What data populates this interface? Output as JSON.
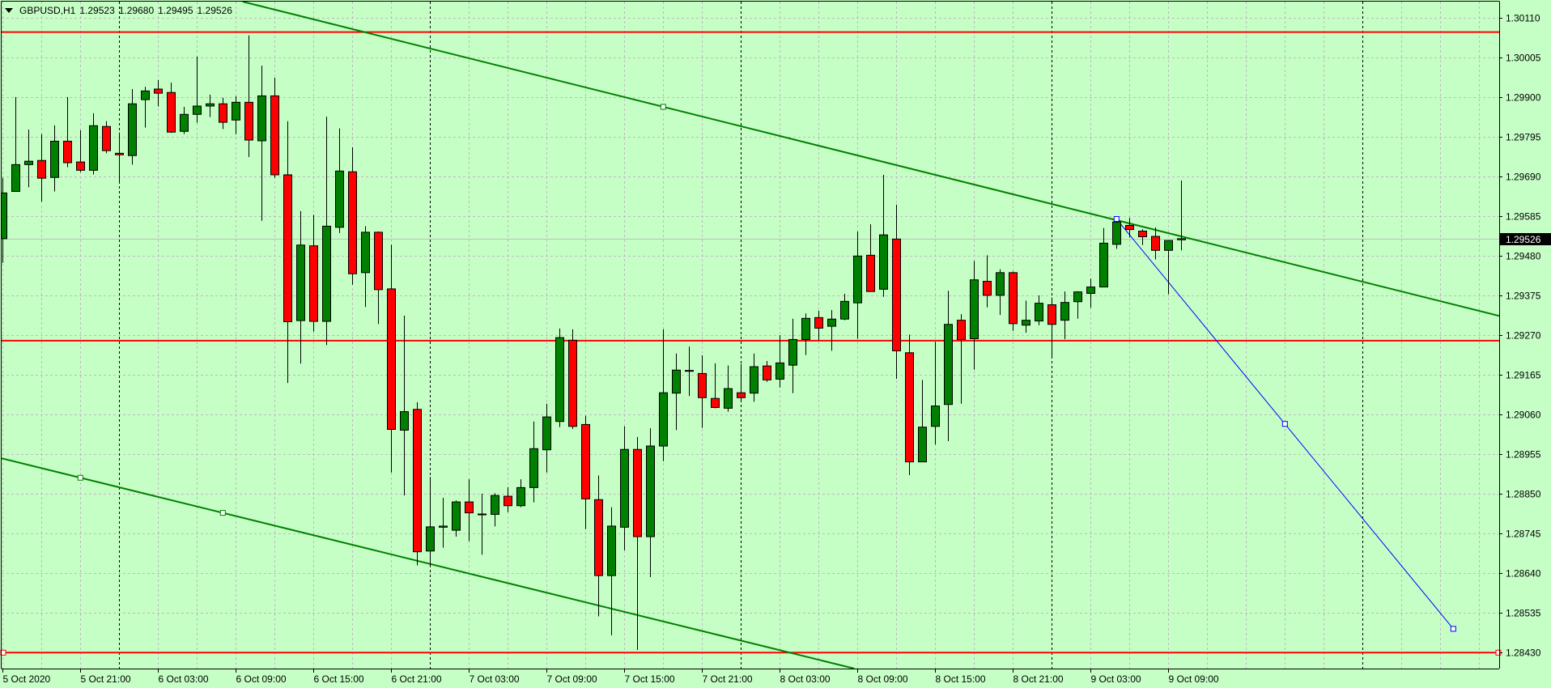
{
  "header": {
    "symbol_timeframe": "GBPUSD,H1",
    "open": "1.29523",
    "high": "1.29680",
    "low": "1.29495",
    "close": "1.29526",
    "menu_icon": "triangle-down-icon"
  },
  "colors": {
    "background": "#c6ffc6",
    "bull": "#008000",
    "bear": "#ff0000",
    "doji": "#000000",
    "outline": "#000000",
    "grid": "#c0b8c0",
    "separator": "#000000",
    "bid_line": "#c0c0c0"
  },
  "chart_data": {
    "type": "candlestick",
    "symbol": "GBPUSD",
    "timeframe": "H1",
    "grid": true,
    "ylim": [
      1.28388,
      1.30158
    ],
    "y_ticks": [
      "1.30110",
      "1.30005",
      "1.29900",
      "1.29795",
      "1.29690",
      "1.29585",
      "1.29480",
      "1.29375",
      "1.29270",
      "1.29165",
      "1.29060",
      "1.28955",
      "1.28850",
      "1.28745",
      "1.28640",
      "1.28535",
      "1.28430"
    ],
    "x_ticks": [
      {
        "time": "2020-10-05 15:00",
        "label": "5 Oct 2020"
      },
      {
        "time": "2020-10-05 21:00",
        "label": "5 Oct 21:00"
      },
      {
        "time": "2020-10-06 03:00",
        "label": "6 Oct 03:00"
      },
      {
        "time": "2020-10-06 09:00",
        "label": "6 Oct 09:00"
      },
      {
        "time": "2020-10-06 15:00",
        "label": "6 Oct 15:00"
      },
      {
        "time": "2020-10-06 21:00",
        "label": "6 Oct 21:00"
      },
      {
        "time": "2020-10-07 03:00",
        "label": "7 Oct 03:00"
      },
      {
        "time": "2020-10-07 09:00",
        "label": "7 Oct 09:00"
      },
      {
        "time": "2020-10-07 15:00",
        "label": "7 Oct 15:00"
      },
      {
        "time": "2020-10-07 21:00",
        "label": "7 Oct 21:00"
      },
      {
        "time": "2020-10-08 03:00",
        "label": "8 Oct 03:00"
      },
      {
        "time": "2020-10-08 09:00",
        "label": "8 Oct 09:00"
      },
      {
        "time": "2020-10-08 15:00",
        "label": "8 Oct 15:00"
      },
      {
        "time": "2020-10-08 21:00",
        "label": "8 Oct 21:00"
      },
      {
        "time": "2020-10-09 03:00",
        "label": "9 Oct 03:00"
      },
      {
        "time": "2020-10-09 09:00",
        "label": "9 Oct 09:00"
      }
    ],
    "bid": {
      "price": 1.29526,
      "label": "1.29526"
    },
    "ohlc_columns": [
      "time",
      "open",
      "high",
      "low",
      "close"
    ],
    "ohlc": [
      [
        "2020-10-05 15:00",
        1.29526,
        1.29687,
        1.29462,
        1.29647
      ],
      [
        "2020-10-05 16:00",
        1.29651,
        1.29901,
        1.29651,
        1.29722
      ],
      [
        "2020-10-05 17:00",
        1.29722,
        1.29815,
        1.29662,
        1.29731
      ],
      [
        "2020-10-05 18:00",
        1.29733,
        1.29803,
        1.29624,
        1.29686
      ],
      [
        "2020-10-05 19:00",
        1.29688,
        1.29826,
        1.29651,
        1.29784
      ],
      [
        "2020-10-05 20:00",
        1.29784,
        1.29901,
        1.29715,
        1.29727
      ],
      [
        "2020-10-05 21:00",
        1.29729,
        1.29813,
        1.29702,
        1.29707
      ],
      [
        "2020-10-05 22:00",
        1.29707,
        1.29858,
        1.29696,
        1.29825
      ],
      [
        "2020-10-05 23:00",
        1.29823,
        1.29837,
        1.29752,
        1.29759
      ],
      [
        "2020-10-06 00:00",
        1.29752,
        1.29807,
        1.29672,
        1.29748
      ],
      [
        "2020-10-06 01:00",
        1.29746,
        1.29922,
        1.29722,
        1.29883
      ],
      [
        "2020-10-06 02:00",
        1.29894,
        1.29928,
        1.2982,
        1.29917
      ],
      [
        "2020-10-06 03:00",
        1.29922,
        1.29946,
        1.29876,
        1.29911
      ],
      [
        "2020-10-06 04:00",
        1.29913,
        1.29939,
        1.29806,
        1.29808
      ],
      [
        "2020-10-06 05:00",
        1.2981,
        1.29875,
        1.29803,
        1.29855
      ],
      [
        "2020-10-06 06:00",
        1.29855,
        1.30008,
        1.29833,
        1.29877
      ],
      [
        "2020-10-06 07:00",
        1.29877,
        1.29907,
        1.29848,
        1.29883
      ],
      [
        "2020-10-06 08:00",
        1.29883,
        1.29899,
        1.29816,
        1.29834
      ],
      [
        "2020-10-06 09:00",
        1.2984,
        1.29903,
        1.29803,
        1.29887
      ],
      [
        "2020-10-06 10:00",
        1.29887,
        1.30064,
        1.29742,
        1.29787
      ],
      [
        "2020-10-06 11:00",
        1.29785,
        1.29984,
        1.29573,
        1.29904
      ],
      [
        "2020-10-06 12:00",
        1.29904,
        1.29952,
        1.29687,
        1.29695
      ],
      [
        "2020-10-06 13:00",
        1.29695,
        1.29837,
        1.29144,
        1.29306
      ],
      [
        "2020-10-06 14:00",
        1.29309,
        1.29599,
        1.29195,
        1.29509
      ],
      [
        "2020-10-06 15:00",
        1.29507,
        1.29589,
        1.2928,
        1.29307
      ],
      [
        "2020-10-06 16:00",
        1.29307,
        1.29849,
        1.29244,
        1.29559
      ],
      [
        "2020-10-06 17:00",
        1.29556,
        1.29818,
        1.29541,
        1.29705
      ],
      [
        "2020-10-06 18:00",
        1.29703,
        1.29768,
        1.29404,
        1.29433
      ],
      [
        "2020-10-06 19:00",
        1.29436,
        1.29559,
        1.29345,
        1.29543
      ],
      [
        "2020-10-06 20:00",
        1.29543,
        1.29545,
        1.293,
        1.29391
      ],
      [
        "2020-10-06 21:00",
        1.29393,
        1.2951,
        1.28907,
        1.29021
      ],
      [
        "2020-10-06 22:00",
        1.29019,
        1.29322,
        1.28846,
        1.29068
      ],
      [
        "2020-10-06 23:00",
        1.29074,
        1.29093,
        1.28661,
        1.28697
      ],
      [
        "2020-10-07 00:00",
        1.28699,
        1.28895,
        1.28662,
        1.28763
      ],
      [
        "2020-10-07 01:00",
        1.28762,
        1.2884,
        1.28708,
        1.28765
      ],
      [
        "2020-10-07 02:00",
        1.28754,
        1.28833,
        1.28737,
        1.28829
      ],
      [
        "2020-10-07 03:00",
        1.28829,
        1.28889,
        1.28725,
        1.288
      ],
      [
        "2020-10-07 04:00",
        1.28797,
        1.28851,
        1.28689,
        1.28797
      ],
      [
        "2020-10-07 05:00",
        1.28796,
        1.28852,
        1.28764,
        1.28846
      ],
      [
        "2020-10-07 06:00",
        1.28844,
        1.28868,
        1.28802,
        1.28819
      ],
      [
        "2020-10-07 07:00",
        1.28819,
        1.28889,
        1.28815,
        1.28867
      ],
      [
        "2020-10-07 08:00",
        1.28867,
        1.29042,
        1.28828,
        1.2897
      ],
      [
        "2020-10-07 09:00",
        1.28967,
        1.29089,
        1.28907,
        1.29054
      ],
      [
        "2020-10-07 10:00",
        1.29042,
        1.29288,
        1.29027,
        1.29264
      ],
      [
        "2020-10-07 11:00",
        1.29257,
        1.29286,
        1.29022,
        1.29029
      ],
      [
        "2020-10-07 12:00",
        1.29034,
        1.29057,
        1.28757,
        1.28837
      ],
      [
        "2020-10-07 13:00",
        1.28835,
        1.28899,
        1.28526,
        1.28634
      ],
      [
        "2020-10-07 14:00",
        1.28634,
        1.28815,
        1.28476,
        1.28765
      ],
      [
        "2020-10-07 15:00",
        1.28762,
        1.29029,
        1.28701,
        1.28968
      ],
      [
        "2020-10-07 16:00",
        1.28968,
        1.29001,
        1.28437,
        1.28737
      ],
      [
        "2020-10-07 17:00",
        1.28737,
        1.29024,
        1.2863,
        1.28977
      ],
      [
        "2020-10-07 18:00",
        1.28977,
        1.29286,
        1.28937,
        1.29118
      ],
      [
        "2020-10-07 19:00",
        1.29117,
        1.29222,
        1.29019,
        1.29178
      ],
      [
        "2020-10-07 20:00",
        1.29177,
        1.2924,
        1.29109,
        1.29177
      ],
      [
        "2020-10-07 21:00",
        1.29169,
        1.29217,
        1.29025,
        1.29105
      ],
      [
        "2020-10-07 22:00",
        1.29103,
        1.29196,
        1.29077,
        1.29079
      ],
      [
        "2020-10-07 23:00",
        1.29077,
        1.2919,
        1.29068,
        1.29129
      ],
      [
        "2020-10-08 00:00",
        1.29118,
        1.29194,
        1.29094,
        1.29105
      ],
      [
        "2020-10-08 01:00",
        1.29117,
        1.29222,
        1.29094,
        1.29187
      ],
      [
        "2020-10-08 02:00",
        1.29189,
        1.29202,
        1.29147,
        1.29152
      ],
      [
        "2020-10-08 03:00",
        1.29154,
        1.2927,
        1.29132,
        1.29197
      ],
      [
        "2020-10-08 04:00",
        1.29191,
        1.29314,
        1.29117,
        1.29259
      ],
      [
        "2020-10-08 05:00",
        1.29259,
        1.29328,
        1.29218,
        1.29315
      ],
      [
        "2020-10-08 06:00",
        1.29317,
        1.29335,
        1.29257,
        1.29289
      ],
      [
        "2020-10-08 07:00",
        1.29294,
        1.29337,
        1.29229,
        1.29313
      ],
      [
        "2020-10-08 08:00",
        1.29313,
        1.2938,
        1.2931,
        1.2936
      ],
      [
        "2020-10-08 09:00",
        1.29356,
        1.29545,
        1.29261,
        1.2948
      ],
      [
        "2020-10-08 10:00",
        1.29482,
        1.29564,
        1.29386,
        1.29386
      ],
      [
        "2020-10-08 11:00",
        1.29392,
        1.29695,
        1.29372,
        1.29536
      ],
      [
        "2020-10-08 12:00",
        1.29525,
        1.29616,
        1.29155,
        1.29229
      ],
      [
        "2020-10-08 13:00",
        1.29224,
        1.29272,
        1.289,
        1.28935
      ],
      [
        "2020-10-08 14:00",
        1.28935,
        1.29152,
        1.28935,
        1.29027
      ],
      [
        "2020-10-08 15:00",
        1.29029,
        1.29253,
        1.28981,
        1.29083
      ],
      [
        "2020-10-08 16:00",
        1.29087,
        1.29388,
        1.2899,
        1.29299
      ],
      [
        "2020-10-08 17:00",
        1.2931,
        1.29326,
        1.29089,
        1.29259
      ],
      [
        "2020-10-08 18:00",
        1.29261,
        1.29467,
        1.29179,
        1.29417
      ],
      [
        "2020-10-08 19:00",
        1.29413,
        1.29482,
        1.29344,
        1.29376
      ],
      [
        "2020-10-08 20:00",
        1.29376,
        1.29445,
        1.29324,
        1.29436
      ],
      [
        "2020-10-08 21:00",
        1.29436,
        1.29439,
        1.29282,
        1.29301
      ],
      [
        "2020-10-08 22:00",
        1.29297,
        1.29362,
        1.29277,
        1.2931
      ],
      [
        "2020-10-08 23:00",
        1.29308,
        1.29376,
        1.29297,
        1.29355
      ],
      [
        "2020-10-09 00:00",
        1.29351,
        1.2937,
        1.29209,
        1.29299
      ],
      [
        "2020-10-09 01:00",
        1.2931,
        1.29386,
        1.2926,
        1.29357
      ],
      [
        "2020-10-09 02:00",
        1.29359,
        1.29387,
        1.29314,
        1.29385
      ],
      [
        "2020-10-09 03:00",
        1.29381,
        1.2942,
        1.29343,
        1.29398
      ],
      [
        "2020-10-09 04:00",
        1.29398,
        1.29554,
        1.29398,
        1.29514
      ],
      [
        "2020-10-09 05:00",
        1.29511,
        1.29578,
        1.29499,
        1.2957
      ],
      [
        "2020-10-09 06:00",
        1.29561,
        1.29581,
        1.29529,
        1.2955
      ],
      [
        "2020-10-09 07:00",
        1.29546,
        1.29551,
        1.29509,
        1.29531
      ],
      [
        "2020-10-09 08:00",
        1.29532,
        1.29556,
        1.29471,
        1.29495
      ],
      [
        "2020-10-09 09:00",
        1.29495,
        1.29521,
        1.29379,
        1.29521
      ],
      [
        "2020-10-09 10:00",
        1.29523,
        1.2968,
        1.29495,
        1.29526
      ]
    ],
    "horizontal_lines": [
      {
        "price": 1.30073,
        "color": "#ff0000",
        "handles": false
      },
      {
        "price": 1.29256,
        "color": "#ff0000",
        "handles": false
      },
      {
        "price": 1.2843,
        "color": "#ff0000",
        "handles": true
      }
    ],
    "trendlines": [
      {
        "p1": {
          "time": "2020-10-07 18:00",
          "price": 1.29875
        },
        "p2": {
          "time": "2020-10-09 03:00",
          "price": 1.29592
        },
        "extend": "both",
        "color": "#008000",
        "handles": [
          "p1"
        ]
      },
      {
        "p1": {
          "time": "2020-10-05 21:00",
          "price": 1.28893
        },
        "p2": {
          "time": "2020-10-06 08:00",
          "price": 1.288
        },
        "extend": "both",
        "color": "#008000",
        "handles": [
          "p1",
          "p2"
        ]
      },
      {
        "p1": {
          "time": "2020-10-09 05:00",
          "price": 1.29578
        },
        "p2": {
          "time": "2020-10-10 07:00",
          "price": 1.28493
        },
        "extend": "none",
        "color": "#0000ff",
        "handles": [
          "p1",
          "mid",
          "p2"
        ]
      }
    ]
  }
}
